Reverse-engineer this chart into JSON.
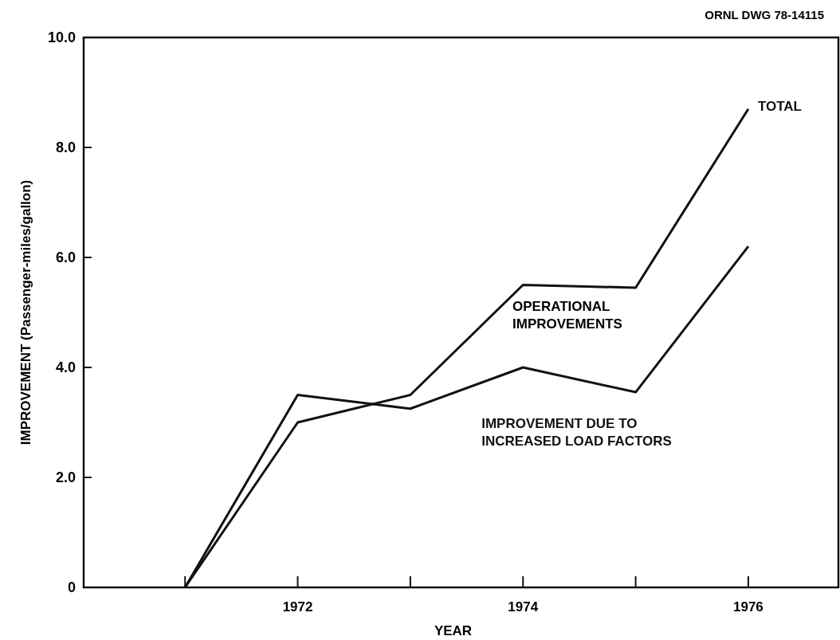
{
  "chart_data": {
    "type": "line",
    "xlabel": "YEAR",
    "ylabel": "IMPROVEMENT (Passenger-miles/gallon)",
    "x": [
      1971,
      1972,
      1973,
      1974,
      1975,
      1976
    ],
    "series": [
      {
        "name": "TOTAL",
        "color": "#111111",
        "values": [
          0,
          3.0,
          3.5,
          5.5,
          5.45,
          8.7
        ]
      },
      {
        "name": "IMPROVEMENT DUE TO INCREASED LOAD FACTORS",
        "color": "#111111",
        "values": [
          0,
          3.5,
          3.25,
          4.0,
          3.55,
          6.2
        ]
      }
    ],
    "xlim": [
      1970.1,
      1976.8
    ],
    "xticks": [
      {
        "value": 1971,
        "label": null
      },
      1972,
      {
        "value": 1973,
        "label": null
      },
      1974,
      {
        "value": 1975,
        "label": null
      },
      1976
    ],
    "ylim": [
      0,
      10
    ],
    "yticks": [
      0,
      {
        "value": 2,
        "label": "2.0"
      },
      {
        "value": 4,
        "label": "4.0"
      },
      {
        "value": 6,
        "label": "6.0"
      },
      {
        "value": 8,
        "label": "8.0"
      },
      {
        "value": 10,
        "label": "10.0"
      }
    ],
    "grid": false,
    "marker": "none",
    "line_style": "solid",
    "annotations": [
      "OPERATIONAL IMPROVEMENTS",
      "ORNL DWG 78-14115"
    ]
  }
}
